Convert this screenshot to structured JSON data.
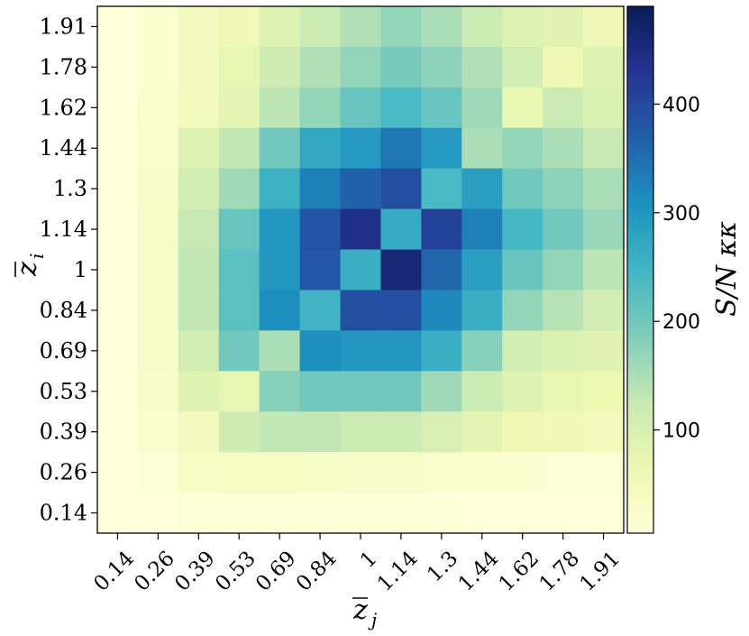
{
  "chart_data": {
    "type": "heatmap",
    "x_tick_labels": [
      "0.14",
      "0.26",
      "0.39",
      "0.53",
      "0.69",
      "0.84",
      "1",
      "1.14",
      "1.3",
      "1.44",
      "1.62",
      "1.78",
      "1.91"
    ],
    "y_tick_labels": [
      "0.14",
      "0.26",
      "0.39",
      "0.53",
      "0.69",
      "0.84",
      "1",
      "1.14",
      "1.3",
      "1.44",
      "1.62",
      "1.78",
      "1.91"
    ],
    "xlabel": "z̄_j",
    "ylabel": "z̄_i",
    "colorbar_label": "S/N κκ",
    "colorbar_ticks": [
      100,
      200,
      300,
      400
    ],
    "colorbar_range": [
      5,
      490
    ],
    "colormap": "YlGnBu",
    "values_rows_top_to_bottom": [
      [
        5,
        15,
        45,
        55,
        90,
        120,
        145,
        170,
        150,
        120,
        90,
        85,
        55
      ],
      [
        5,
        15,
        45,
        75,
        115,
        145,
        170,
        195,
        175,
        145,
        110,
        60,
        90
      ],
      [
        5,
        20,
        50,
        80,
        135,
        170,
        210,
        240,
        210,
        160,
        70,
        120,
        95
      ],
      [
        5,
        25,
        90,
        130,
        200,
        270,
        295,
        340,
        295,
        150,
        170,
        150,
        125
      ],
      [
        5,
        30,
        110,
        160,
        255,
        330,
        365,
        390,
        240,
        285,
        200,
        175,
        150
      ],
      [
        5,
        35,
        125,
        210,
        300,
        385,
        440,
        265,
        410,
        330,
        245,
        200,
        165
      ],
      [
        5,
        35,
        130,
        220,
        300,
        380,
        260,
        460,
        360,
        285,
        210,
        170,
        135
      ],
      [
        5,
        35,
        130,
        220,
        310,
        250,
        390,
        390,
        320,
        260,
        170,
        140,
        110
      ],
      [
        5,
        35,
        110,
        200,
        150,
        310,
        300,
        300,
        260,
        180,
        110,
        95,
        85
      ],
      [
        5,
        30,
        90,
        75,
        180,
        200,
        200,
        200,
        160,
        120,
        90,
        75,
        65
      ],
      [
        5,
        25,
        45,
        115,
        130,
        130,
        120,
        120,
        100,
        80,
        60,
        55,
        50
      ],
      [
        5,
        10,
        35,
        40,
        40,
        35,
        30,
        30,
        25,
        20,
        15,
        10,
        10
      ],
      [
        5,
        5,
        10,
        10,
        10,
        10,
        8,
        8,
        8,
        6,
        6,
        5,
        5
      ]
    ]
  }
}
